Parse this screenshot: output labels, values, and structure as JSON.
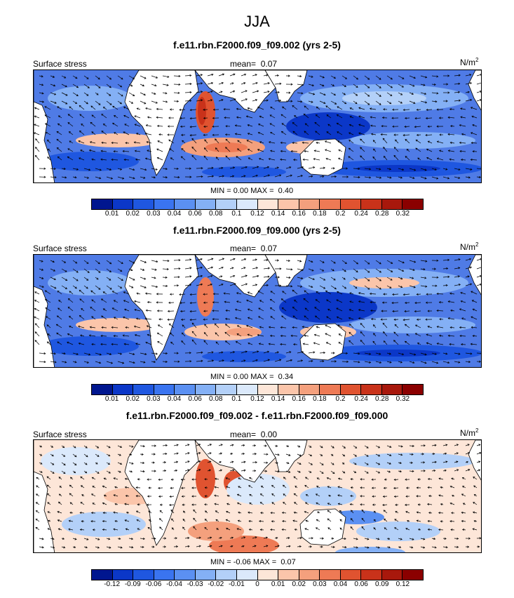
{
  "season": "JJA",
  "colors": {
    "land": "#ffffff",
    "outline": "#000000",
    "abs_scale": [
      "#00168f",
      "#0b37c8",
      "#1f57e0",
      "#3a74f0",
      "#5b90f2",
      "#84b0f5",
      "#b3d0f8",
      "#dbe9fb",
      "#fde6d8",
      "#fbc5aa",
      "#f4a07d",
      "#ee7a55",
      "#e05330",
      "#c9321a",
      "#a8180c",
      "#8b0000"
    ],
    "diff_scale": [
      "#00168f",
      "#0b37c8",
      "#1f57e0",
      "#3a74f0",
      "#5b90f2",
      "#84b0f5",
      "#b3d0f8",
      "#dbe9fb",
      "#fde6d8",
      "#fbc5aa",
      "#f4a07d",
      "#ee7a55",
      "#e05330",
      "#c9321a",
      "#a8180c",
      "#8b0000"
    ]
  },
  "panels": [
    {
      "id": "p1",
      "title": "f.e11.rbn.F2000.f09_f09.002 (yrs 2-5)",
      "left_label": "Surface stress",
      "mean_label": "mean=",
      "mean_value": "0.07",
      "units_main": "N/m",
      "units_sup": "2",
      "min_label": "MIN =",
      "min_value": "0.00",
      "max_label": "MAX =",
      "max_value": "0.40",
      "tick_labels": [
        "0.01",
        "0.02",
        "0.03",
        "0.04",
        "0.06",
        "0.08",
        "0.1",
        "0.12",
        "0.14",
        "0.16",
        "0.18",
        "0.2",
        "0.24",
        "0.28",
        "0.32"
      ]
    },
    {
      "id": "p2",
      "title": "f.e11.rbn.F2000.f09_f09.000 (yrs 2-5)",
      "left_label": "Surface stress",
      "mean_label": "mean=",
      "mean_value": "0.07",
      "units_main": "N/m",
      "units_sup": "2",
      "min_label": "MIN =",
      "min_value": "0.00",
      "max_label": "MAX =",
      "max_value": "0.34",
      "tick_labels": [
        "0.01",
        "0.02",
        "0.03",
        "0.04",
        "0.06",
        "0.08",
        "0.1",
        "0.12",
        "0.14",
        "0.16",
        "0.18",
        "0.2",
        "0.24",
        "0.28",
        "0.32"
      ]
    },
    {
      "id": "p3",
      "title": "f.e11.rbn.F2000.f09_f09.002 - f.e11.rbn.F2000.f09_f09.000",
      "left_label": "Surface stress",
      "mean_label": "mean=",
      "mean_value": "0.00",
      "units_main": "N/m",
      "units_sup": "2",
      "min_label": "MIN =",
      "min_value": "-0.06",
      "max_label": "MAX =",
      "max_value": "0.07",
      "tick_labels": [
        "-0.12",
        "-0.09",
        "-0.06",
        "-0.04",
        "-0.03",
        "-0.02",
        "-0.01",
        "0",
        "0.01",
        "0.02",
        "0.03",
        "0.04",
        "0.06",
        "0.09",
        "0.12"
      ]
    }
  ]
}
